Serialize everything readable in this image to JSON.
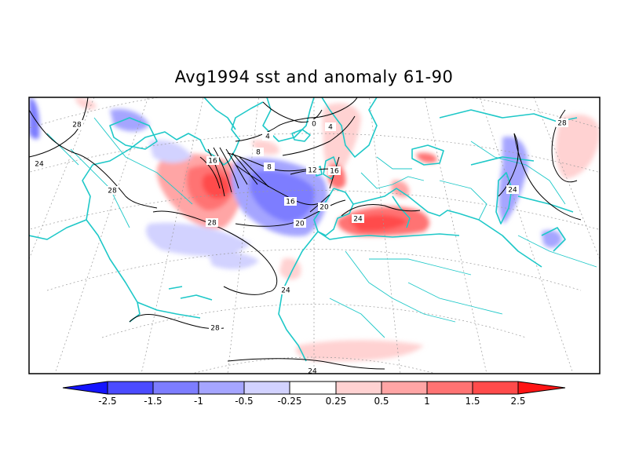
{
  "title": "Avg1994 sst and anomaly 61-90",
  "colorbar": {
    "labels": [
      "-2.5",
      "-1.5",
      "-1",
      "-0.5",
      "-0.25",
      "0.25",
      "0.5",
      "1",
      "1.5",
      "2.5"
    ],
    "colors": [
      "#1414ff",
      "#4b4bff",
      "#7d7dff",
      "#a5a5ff",
      "#d2d2ff",
      "#ffffff",
      "#ffd2d2",
      "#ffa5a5",
      "#ff7373",
      "#ff4b4b",
      "#ff1414"
    ]
  },
  "contour_labels": [
    "28",
    "24",
    "28",
    "28",
    "16",
    "16",
    "8",
    "8",
    "4",
    "0",
    "4",
    "12",
    "16",
    "20",
    "20",
    "24",
    "24",
    "24",
    "28",
    "28",
    "24"
  ],
  "colors": {
    "coast": "#1ec8c8",
    "grid": "#9a9a9a",
    "contour": "#000000",
    "frame": "#000000"
  }
}
